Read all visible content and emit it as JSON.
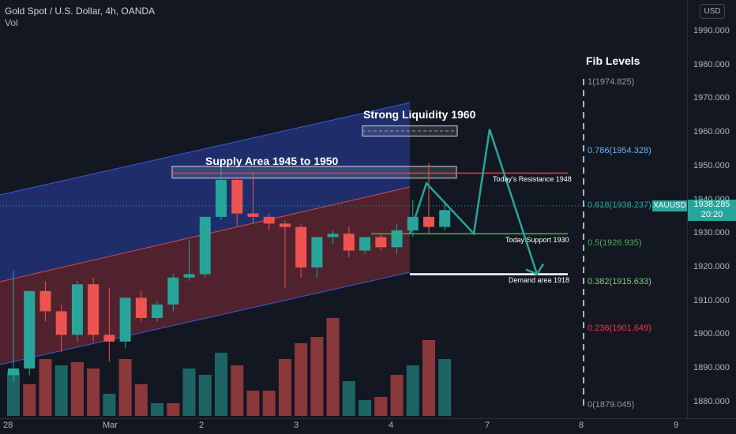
{
  "header": {
    "title": "Gold Spot / U.S. Dollar, 4h, OANDA",
    "vol_label": "Vol"
  },
  "currency_button": "USD",
  "price_axis": [
    "1990.000",
    "1980.000",
    "1970.000",
    "1960.000",
    "1950.000",
    "1940.000",
    "1930.000",
    "1920.000",
    "1910.000",
    "1900.000",
    "1890.000",
    "1880.000"
  ],
  "time_axis": [
    "28",
    "Mar",
    "2",
    "3",
    "4",
    "7",
    "8",
    "9"
  ],
  "current_price": {
    "symbol": "XAUUSD",
    "price": "1938.285",
    "countdown": "20:20",
    "value": 1938.285
  },
  "annotations": {
    "strong_liquidity": "Strong Liquidity 1960",
    "supply_area": "Supply Area 1945 to 1950",
    "resistance": "Today's Resistance 1948",
    "support": "Today Support 1930",
    "demand": "Demand area 1918",
    "fib_title": "Fib Levels"
  },
  "fib_levels": [
    {
      "label": "1(1974.825)",
      "value": 1974.825,
      "color": "#9598a1"
    },
    {
      "label": "0.786(1954.328)",
      "value": 1954.328,
      "color": "#64b5f6"
    },
    {
      "label": "0.618(1938.237)",
      "value": 1938.237,
      "color": "#26a69a"
    },
    {
      "label": "0.5(1926.935)",
      "value": 1926.935,
      "color": "#4caf50"
    },
    {
      "label": "0.382(1915.633)",
      "value": 1915.633,
      "color": "#81c784"
    },
    {
      "label": "0.236(1901.649)",
      "value": 1901.649,
      "color": "#f23645"
    },
    {
      "label": "0(1879.045)",
      "value": 1879.045,
      "color": "#9598a1"
    }
  ],
  "colors": {
    "up": "#26a69a",
    "down": "#ef5350",
    "background": "#131722",
    "channel_upper": "#2941a8",
    "channel_lower": "#7a2a35"
  },
  "chart_data": {
    "type": "candlestick",
    "title": "Gold Spot / U.S. Dollar, 4h, OANDA",
    "ylim": [
      1876,
      1999
    ],
    "candles": [
      {
        "o": 1888,
        "h": 1919,
        "l": 1886,
        "c": 1890
      },
      {
        "o": 1890,
        "h": 1913,
        "l": 1888,
        "c": 1913
      },
      {
        "o": 1913,
        "h": 1916,
        "l": 1904,
        "c": 1907
      },
      {
        "o": 1907,
        "h": 1909,
        "l": 1895,
        "c": 1900
      },
      {
        "o": 1900,
        "h": 1916,
        "l": 1898,
        "c": 1915
      },
      {
        "o": 1915,
        "h": 1917,
        "l": 1898,
        "c": 1900
      },
      {
        "o": 1900,
        "h": 1914,
        "l": 1892,
        "c": 1898
      },
      {
        "o": 1898,
        "h": 1911,
        "l": 1896,
        "c": 1911
      },
      {
        "o": 1911,
        "h": 1913,
        "l": 1904,
        "c": 1905
      },
      {
        "o": 1905,
        "h": 1910,
        "l": 1904,
        "c": 1909
      },
      {
        "o": 1909,
        "h": 1918,
        "l": 1907,
        "c": 1917
      },
      {
        "o": 1917,
        "h": 1928,
        "l": 1916,
        "c": 1918
      },
      {
        "o": 1918,
        "h": 1935,
        "l": 1917,
        "c": 1935
      },
      {
        "o": 1935,
        "h": 1950,
        "l": 1934,
        "c": 1946
      },
      {
        "o": 1946,
        "h": 1947,
        "l": 1932,
        "c": 1936
      },
      {
        "o": 1936,
        "h": 1948,
        "l": 1933,
        "c": 1935
      },
      {
        "o": 1935,
        "h": 1936,
        "l": 1931,
        "c": 1933
      },
      {
        "o": 1933,
        "h": 1934,
        "l": 1914,
        "c": 1932
      },
      {
        "o": 1932,
        "h": 1933,
        "l": 1917,
        "c": 1920
      },
      {
        "o": 1920,
        "h": 1929,
        "l": 1917,
        "c": 1929
      },
      {
        "o": 1929,
        "h": 1931,
        "l": 1927,
        "c": 1930
      },
      {
        "o": 1930,
        "h": 1932,
        "l": 1923,
        "c": 1925
      },
      {
        "o": 1925,
        "h": 1929,
        "l": 1924,
        "c": 1929
      },
      {
        "o": 1929,
        "h": 1930,
        "l": 1925,
        "c": 1926
      },
      {
        "o": 1926,
        "h": 1933,
        "l": 1924,
        "c": 1931
      },
      {
        "o": 1931,
        "h": 1940,
        "l": 1929,
        "c": 1935
      },
      {
        "o": 1935,
        "h": 1951,
        "l": 1930,
        "c": 1932
      },
      {
        "o": 1932,
        "h": 1939,
        "l": 1931,
        "c": 1937
      }
    ],
    "volume": [
      14,
      10,
      18,
      16,
      17,
      15,
      7,
      18,
      10,
      4,
      4,
      15,
      13,
      20,
      16,
      8,
      8,
      18,
      23,
      25,
      31,
      11,
      5,
      6,
      13,
      16,
      24,
      18
    ],
    "volume_colors": [
      "up",
      "down",
      "down",
      "up",
      "down",
      "down",
      "up",
      "down",
      "down",
      "up",
      "down",
      "up",
      "up",
      "up",
      "down",
      "down",
      "down",
      "down",
      "down",
      "down",
      "down",
      "up",
      "up",
      "down",
      "down",
      "up",
      "down",
      "up"
    ],
    "annotations": [
      "Strong Liquidity 1960",
      "Supply Area 1945 to 1950",
      "Today's Resistance 1948",
      "Today Support 1930",
      "Demand area 1918"
    ],
    "levels": [
      {
        "label": "Strong Liquidity",
        "value": 1960
      },
      {
        "label": "Supply Area",
        "range": [
          1945,
          1950
        ]
      },
      {
        "label": "Today's Resistance",
        "value": 1948
      },
      {
        "label": "Today Support",
        "value": 1930
      },
      {
        "label": "Demand area",
        "value": 1918
      }
    ],
    "projection": [
      1930,
      1945,
      1930,
      1961,
      1918
    ],
    "fib": {
      "1": 1974.825,
      "0.786": 1954.328,
      "0.618": 1938.237,
      "0.5": 1926.935,
      "0.382": 1915.633,
      "0.236": 1901.649,
      "0": 1879.045
    }
  }
}
